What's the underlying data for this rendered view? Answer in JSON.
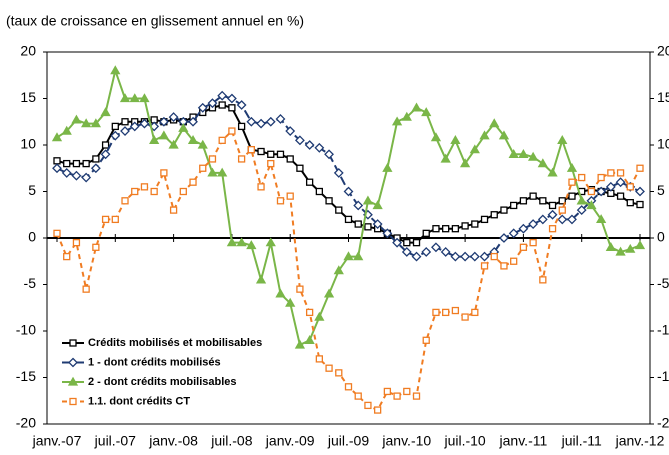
{
  "chart_data": {
    "type": "line",
    "subtitle": "(taux de croissance en glissement annuel en %)",
    "categories": [
      "janv.-07",
      null,
      null,
      null,
      null,
      null,
      "juil.-07",
      null,
      null,
      null,
      null,
      null,
      "janv.-08",
      null,
      null,
      null,
      null,
      null,
      "juil.-08",
      null,
      null,
      null,
      null,
      null,
      "janv.-09",
      null,
      null,
      null,
      null,
      null,
      "juil.-09",
      null,
      null,
      null,
      null,
      null,
      "janv.-10",
      null,
      null,
      null,
      null,
      null,
      "juil.-10",
      null,
      null,
      null,
      null,
      null,
      "janv.-11",
      null,
      null,
      null,
      null,
      null,
      "juil.-11",
      null,
      null,
      null,
      null,
      null,
      "janv.-12"
    ],
    "series": [
      {
        "name": "Crédits mobilisés et mobilisables",
        "color": "#000000",
        "marker": "square",
        "dash": "none",
        "values": [
          8.3,
          8,
          8,
          8,
          8.5,
          10,
          12,
          12.5,
          12.5,
          12.5,
          12.7,
          12.5,
          12.7,
          12.5,
          13,
          13.5,
          14,
          14.3,
          14,
          12,
          9.5,
          9.3,
          9,
          9,
          8.5,
          7.5,
          6,
          5,
          4,
          3,
          2,
          1.5,
          1.2,
          1,
          0.5,
          0,
          -0.5,
          -0.5,
          0.5,
          1,
          1,
          1,
          1.3,
          1.5,
          2,
          2.5,
          3,
          3.5,
          4,
          4.5,
          4,
          3.5,
          4,
          4.5,
          5,
          5.2,
          5,
          4.8,
          4.5,
          3.8,
          3.6
        ]
      },
      {
        "name": "1 - dont crédits mobilisés",
        "color": "#1f3b73",
        "marker": "diamond",
        "dash": "9 4",
        "values": [
          7.5,
          7,
          6.7,
          6.5,
          7.5,
          9,
          11,
          11.5,
          12,
          12.3,
          12,
          12.5,
          13,
          12.5,
          12.5,
          14,
          14.5,
          15.3,
          15,
          14.3,
          12.5,
          12.3,
          12.5,
          12.8,
          11.5,
          10.5,
          10,
          9.7,
          9,
          7,
          5,
          3.5,
          2.5,
          1.5,
          0.5,
          -0.5,
          -1.5,
          -2,
          -1.5,
          -1,
          -1.5,
          -2,
          -2,
          -2,
          -2,
          -1.5,
          0,
          0.5,
          1,
          1.5,
          2,
          2.5,
          2,
          2,
          3,
          4,
          5,
          5.5,
          6,
          5.5,
          5
        ]
      },
      {
        "name": "2 - dont crédits mobilisables",
        "color": "#7ab648",
        "marker": "triangle",
        "dash": "none",
        "values": [
          10.8,
          11.5,
          12.7,
          12.3,
          12.3,
          13.5,
          18,
          15,
          15,
          15,
          10.5,
          11,
          10,
          11.8,
          10.5,
          10,
          7,
          7,
          -0.5,
          -0.5,
          -0.8,
          -4.5,
          -0.5,
          -6,
          -7,
          -11.5,
          -11,
          -8.5,
          -6,
          -3.5,
          -2,
          -2,
          4,
          3.5,
          7.5,
          12.5,
          13,
          14,
          13.5,
          10.8,
          8.5,
          10.5,
          8,
          9.5,
          11,
          12.3,
          11,
          9,
          9,
          8.7,
          8,
          7,
          10.5,
          7.5,
          4,
          3.5,
          2,
          -1,
          -1.5,
          -1.2,
          -0.8
        ]
      },
      {
        "name": "1.1. dont crédits CT",
        "color": "#f07c22",
        "marker": "square",
        "dash": "5 4",
        "values": [
          0.5,
          -2,
          -0.5,
          -5.5,
          -1,
          2,
          2,
          4,
          5,
          5.5,
          5,
          7,
          3,
          5,
          6,
          7.5,
          8.5,
          10.5,
          11.5,
          8.5,
          9.5,
          5.5,
          8,
          4,
          4.5,
          -5.5,
          -8,
          -13,
          -14,
          -14.5,
          -16,
          -17,
          -18,
          -18.5,
          -16.5,
          -17,
          -16.5,
          -17,
          -11,
          -8,
          -8,
          -7.8,
          -8.5,
          -8,
          -3,
          -2,
          -3,
          -2.5,
          -1,
          -0.5,
          -4.5,
          1,
          3,
          6,
          6.5,
          5,
          6.5,
          7,
          7,
          5.5,
          7.5
        ]
      }
    ],
    "ylim": [
      -20,
      20
    ],
    "yticks": [
      -20,
      -15,
      -10,
      -5,
      0,
      5,
      10,
      15,
      20
    ],
    "y2lim": [
      -20,
      20
    ],
    "y2ticks": [
      -20,
      -15,
      -10,
      -5,
      0,
      5,
      10,
      15,
      20
    ],
    "legend": "lower left"
  }
}
